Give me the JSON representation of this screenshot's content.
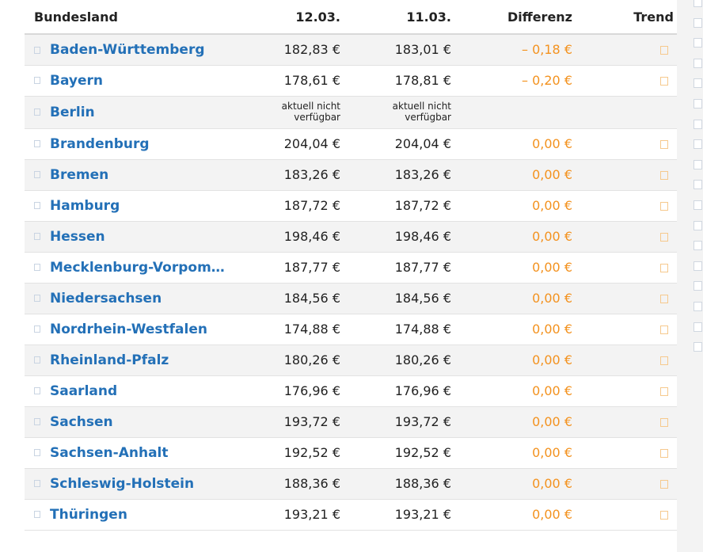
{
  "table": {
    "headers": {
      "state": "Bundesland",
      "date1": "12.03.",
      "date2": "11.03.",
      "diff": "Differenz",
      "trend": "Trend"
    },
    "rows": [
      {
        "state": "Baden-Württemberg",
        "d1": "182,83 €",
        "d2": "183,01 €",
        "diff": "– 0,18 €",
        "trend": "trend-down-icon"
      },
      {
        "state": "Bayern",
        "d1": "178,61 €",
        "d2": "178,81 €",
        "diff": "– 0,20 €",
        "trend": "trend-down-icon"
      },
      {
        "state": "Berlin",
        "d1": "aktuell nicht verfügbar",
        "d2": "aktuell nicht verfügbar",
        "diff": "",
        "trend": ""
      },
      {
        "state": "Brandenburg",
        "d1": "204,04 €",
        "d2": "204,04 €",
        "diff": "0,00 €",
        "trend": "trend-flat-icon"
      },
      {
        "state": "Bremen",
        "d1": "183,26 €",
        "d2": "183,26 €",
        "diff": "0,00 €",
        "trend": "trend-flat-icon"
      },
      {
        "state": "Hamburg",
        "d1": "187,72 €",
        "d2": "187,72 €",
        "diff": "0,00 €",
        "trend": "trend-flat-icon"
      },
      {
        "state": "Hessen",
        "d1": "198,46 €",
        "d2": "198,46 €",
        "diff": "0,00 €",
        "trend": "trend-flat-icon"
      },
      {
        "state": "Mecklenburg-Vorpomm...",
        "d1": "187,77 €",
        "d2": "187,77 €",
        "diff": "0,00 €",
        "trend": "trend-flat-icon"
      },
      {
        "state": "Niedersachsen",
        "d1": "184,56 €",
        "d2": "184,56 €",
        "diff": "0,00 €",
        "trend": "trend-flat-icon"
      },
      {
        "state": "Nordrhein-Westfalen",
        "d1": "174,88 €",
        "d2": "174,88 €",
        "diff": "0,00 €",
        "trend": "trend-flat-icon"
      },
      {
        "state": "Rheinland-Pfalz",
        "d1": "180,26 €",
        "d2": "180,26 €",
        "diff": "0,00 €",
        "trend": "trend-flat-icon"
      },
      {
        "state": "Saarland",
        "d1": "176,96 €",
        "d2": "176,96 €",
        "diff": "0,00 €",
        "trend": "trend-flat-icon"
      },
      {
        "state": "Sachsen",
        "d1": "193,72 €",
        "d2": "193,72 €",
        "diff": "0,00 €",
        "trend": "trend-flat-icon"
      },
      {
        "state": "Sachsen-Anhalt",
        "d1": "192,52 €",
        "d2": "192,52 €",
        "diff": "0,00 €",
        "trend": "trend-flat-icon"
      },
      {
        "state": "Schleswig-Holstein",
        "d1": "188,36 €",
        "d2": "188,36 €",
        "diff": "0,00 €",
        "trend": "trend-flat-icon"
      },
      {
        "state": "Thüringen",
        "d1": "193,21 €",
        "d2": "193,21 €",
        "diff": "0,00 €",
        "trend": "trend-flat-icon"
      }
    ]
  },
  "colors": {
    "link": "#2370b7",
    "diff": "#f3921f",
    "row_alt": "#f3f3f3",
    "border": "#e2e2e2"
  }
}
